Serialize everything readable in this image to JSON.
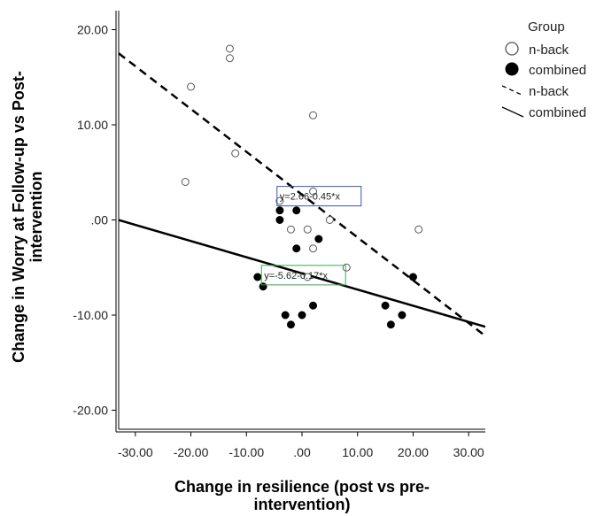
{
  "chart_data": {
    "type": "scatter",
    "xlabel": [
      "Change in resilience (post vs pre-",
      "intervention)"
    ],
    "ylabel": [
      "Change in Worry at Follow-up vs Post-",
      "intervention"
    ],
    "xlim": [
      -33,
      33
    ],
    "ylim": [
      -22,
      22
    ],
    "x_ticks": [
      -30,
      -20,
      -10,
      0,
      10,
      20,
      30
    ],
    "x_tick_labels": [
      "-30.00",
      "-20.00",
      "-10.00",
      ".00",
      "10.00",
      "20.00",
      "30.00"
    ],
    "y_ticks": [
      -20,
      -10,
      0,
      10,
      20
    ],
    "y_tick_labels": [
      "-20.00",
      "-10.00",
      ".00",
      "10.00",
      "20.00"
    ],
    "legend": {
      "title": "Group",
      "placement": "top-right",
      "entries": [
        "n-back",
        "combined",
        "n-back",
        "combined"
      ]
    },
    "series": [
      {
        "name": "n-back",
        "marker": "open-circle",
        "points": [
          [
            -21,
            4
          ],
          [
            -20,
            14
          ],
          [
            -13,
            18
          ],
          [
            -13,
            17
          ],
          [
            -12,
            7
          ],
          [
            -4,
            2
          ],
          [
            -2,
            -1
          ],
          [
            1,
            -1
          ],
          [
            1,
            -6
          ],
          [
            2,
            11
          ],
          [
            2,
            3
          ],
          [
            2,
            -3
          ],
          [
            5,
            0
          ],
          [
            8,
            -5
          ],
          [
            21,
            -1
          ]
        ]
      },
      {
        "name": "combined",
        "marker": "filled-circle",
        "points": [
          [
            -8,
            -6
          ],
          [
            -7,
            -7
          ],
          [
            -4,
            1
          ],
          [
            -4,
            0
          ],
          [
            -3,
            -10
          ],
          [
            -2,
            -11
          ],
          [
            -1,
            1
          ],
          [
            -1,
            -3
          ],
          [
            0,
            -10
          ],
          [
            2,
            -9
          ],
          [
            3,
            -2
          ],
          [
            15,
            -9
          ],
          [
            16,
            -11
          ],
          [
            18,
            -10
          ],
          [
            20,
            -6
          ]
        ]
      }
    ],
    "fit_lines": [
      {
        "name": "n-back",
        "style": "dashed",
        "intercept": 2.66,
        "slope": -0.45,
        "equation": "y=2.66-0.45*x",
        "box_color": "#3a55b5"
      },
      {
        "name": "combined",
        "style": "solid",
        "intercept": -5.62,
        "slope": -0.17,
        "equation": "y=-5.62-0.17*x",
        "box_color": "#3aa655"
      }
    ]
  }
}
